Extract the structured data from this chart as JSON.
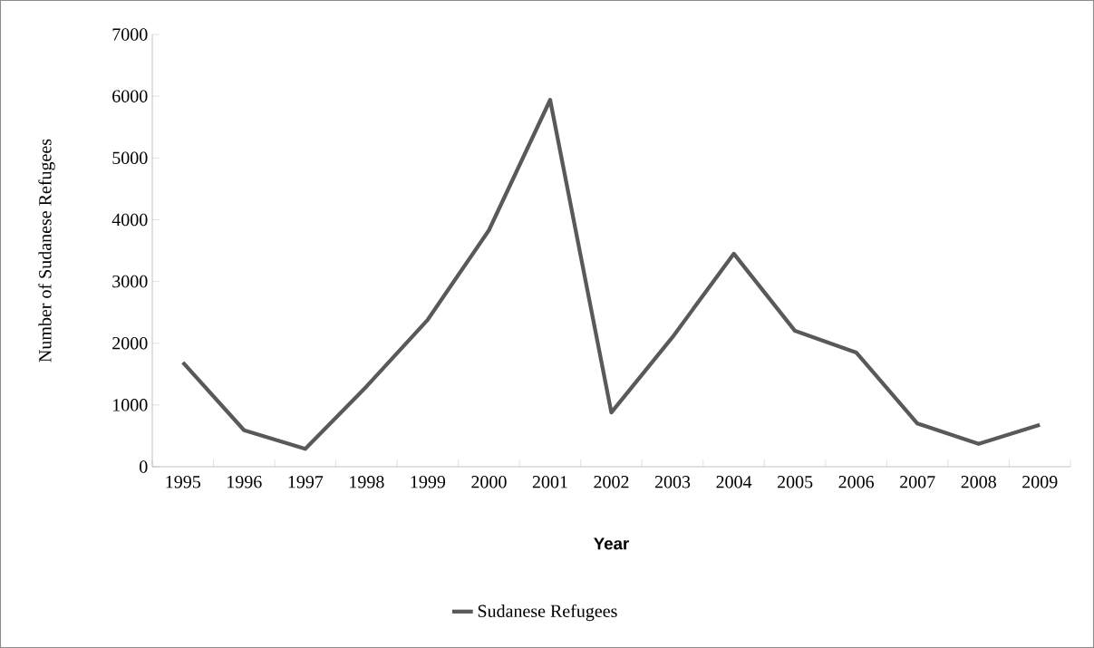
{
  "chart_data": {
    "type": "line",
    "xlabel": "Year",
    "ylabel": "Number of Sudanese Refugees",
    "categories": [
      "1995",
      "1996",
      "1997",
      "1998",
      "1999",
      "2000",
      "2001",
      "2002",
      "2003",
      "2004",
      "2005",
      "2006",
      "2007",
      "2008",
      "2009"
    ],
    "series": [
      {
        "name": "Sudanese Refugees",
        "color": "#595959",
        "values": [
          1690,
          590,
          290,
          1300,
          2380,
          3830,
          5940,
          880,
          2100,
          3450,
          2200,
          1850,
          700,
          370,
          680
        ]
      }
    ],
    "ylim": [
      0,
      7000
    ],
    "yticks": [
      0,
      1000,
      2000,
      3000,
      4000,
      5000,
      6000,
      7000
    ],
    "grid": false,
    "legend": "bottom",
    "marker": "none",
    "line_style": "solid"
  }
}
